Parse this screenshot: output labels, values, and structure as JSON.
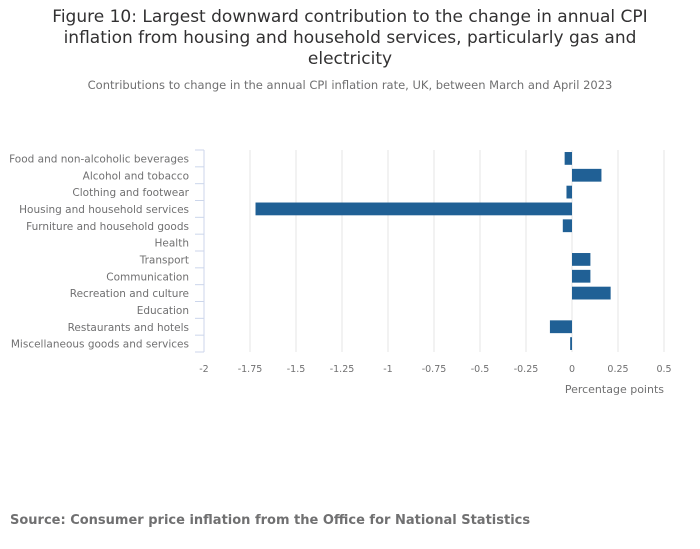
{
  "chart_data": {
    "type": "bar",
    "orientation": "horizontal",
    "title_lines": [
      "Figure 10: Largest downward contribution to the change in annual CPI",
      "inflation from housing and household services, particularly gas and",
      "electricity"
    ],
    "subtitle": "Contributions to change in the annual CPI inflation rate, UK, between March and April 2023",
    "categories": [
      "Food and non-alcoholic beverages",
      "Alcohol and tobacco",
      "Clothing and footwear",
      "Housing and household services",
      "Furniture and household goods",
      "Health",
      "Transport",
      "Communication",
      "Recreation and culture",
      "Education",
      "Restaurants and hotels",
      "Miscellaneous goods and services"
    ],
    "values": [
      -0.04,
      0.16,
      -0.03,
      -1.72,
      -0.05,
      0.0,
      0.1,
      0.1,
      0.21,
      0.0,
      -0.12,
      -0.01
    ],
    "xlabel": "Percentage points",
    "ylabel": "",
    "xlim": [
      -2,
      0.5
    ],
    "xticks": [
      -2,
      -1.75,
      -1.5,
      -1.25,
      -1,
      -0.75,
      -0.5,
      -0.25,
      0,
      0.25,
      0.5
    ],
    "xtick_labels": [
      "-2",
      "-1.75",
      "-1.5",
      "-1.25",
      "-1",
      "-0.75",
      "-0.5",
      "-0.25",
      "0",
      "0.25",
      "0.5"
    ],
    "grid": true,
    "legend": "none",
    "bar_color": "#206095",
    "source": "Source: Consumer price inflation from the Office for National Statistics"
  }
}
